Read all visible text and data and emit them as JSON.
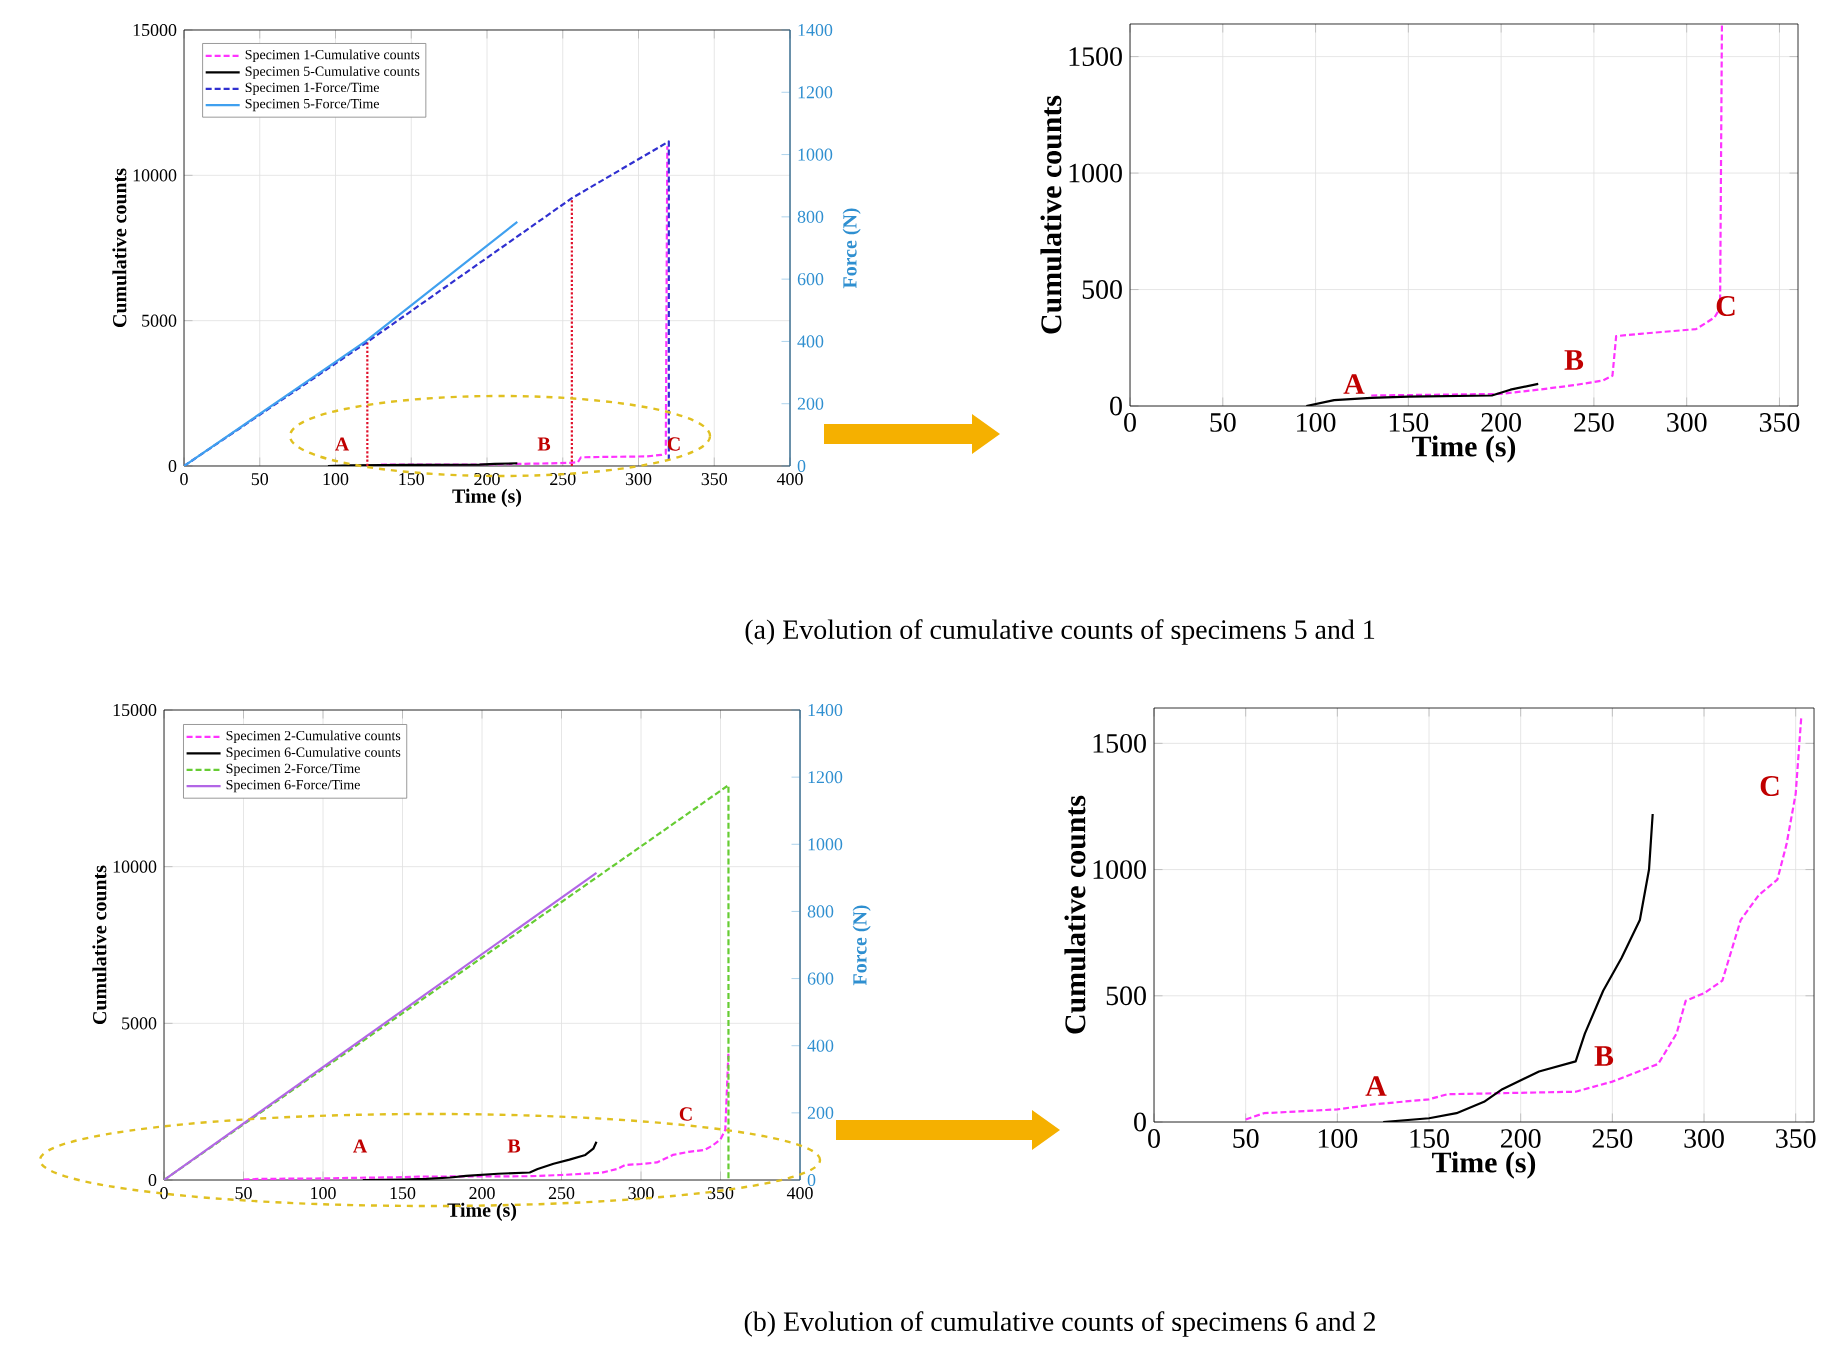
{
  "chart_data": [
    {
      "type": "line",
      "xlabel": "Time (s)",
      "ylabel": "Cumulative counts",
      "y2label": "Force (N)",
      "xlim": [
        0,
        400
      ],
      "ylim": [
        0,
        15000
      ],
      "y2lim": [
        0,
        1400
      ],
      "xticks": [
        0,
        50,
        100,
        150,
        200,
        250,
        300,
        350,
        400
      ],
      "yticks": [
        0,
        5000,
        10000,
        15000
      ],
      "y2ticks": [
        0,
        200,
        400,
        600,
        800,
        1000,
        1200,
        1400
      ],
      "grid": true,
      "legend": "top left",
      "series": [
        {
          "name": "Specimen 1-Cumulative counts",
          "color": "#ff33ff",
          "line_style": "dashed",
          "x": [
            130,
            160,
            200,
            220,
            240,
            255,
            260,
            262,
            275,
            305,
            315,
            318,
            319
          ],
          "values": [
            45,
            48,
            52,
            70,
            90,
            110,
            130,
            300,
            310,
            330,
            380,
            420,
            11000
          ]
        },
        {
          "name": "Specimen 5-Cumulative counts",
          "color": "#000000",
          "line_style": "solid",
          "x": [
            95,
            110,
            130,
            150,
            195,
            205,
            220
          ],
          "values": [
            0,
            25,
            35,
            40,
            45,
            70,
            95
          ]
        },
        {
          "name": "Specimen 1-Force/Time",
          "color": "#3030d0",
          "line_style": "dashed",
          "axis": "y2",
          "x": [
            0,
            120,
            256,
            320,
            320
          ],
          "values": [
            0,
            395,
            860,
            1042,
            20
          ]
        },
        {
          "name": "Specimen 5-Force/Time",
          "color": "#3fa0ef",
          "line_style": "solid",
          "axis": "y2",
          "x": [
            0,
            120,
            220
          ],
          "values": [
            0,
            401,
            784
          ]
        },
        {
          "color": "#e0102a",
          "line_style": "dotted",
          "x": [
            121,
            121
          ],
          "values": [
            0,
            4300
          ]
        },
        {
          "color": "#e0102a",
          "line_style": "dotted",
          "x": [
            256,
            256
          ],
          "values": [
            0,
            9200
          ]
        }
      ],
      "annotations": [
        "A",
        "B",
        "C",
        "(a) Evolution of cumulative counts of specimens 5 and 1"
      ]
    },
    {
      "type": "line",
      "xlabel": "Time (s)",
      "ylabel": "Cumulative counts",
      "xlim": [
        0,
        360
      ],
      "ylim": [
        0,
        1640
      ],
      "xticks": [
        0,
        50,
        100,
        150,
        200,
        250,
        300,
        350
      ],
      "yticks": [
        0,
        500,
        1000,
        1500
      ],
      "grid": true,
      "series": [
        {
          "color": "#ff33ff",
          "line_style": "dashed",
          "x": [
            130,
            160,
            200,
            220,
            240,
            255,
            260,
            262,
            275,
            305,
            315,
            318,
            319
          ],
          "values": [
            45,
            48,
            52,
            70,
            90,
            110,
            130,
            300,
            310,
            330,
            380,
            420,
            1640
          ]
        },
        {
          "color": "#000000",
          "line_style": "solid",
          "x": [
            95,
            110,
            130,
            150,
            195,
            205,
            220
          ],
          "values": [
            0,
            25,
            35,
            40,
            45,
            70,
            95
          ]
        }
      ],
      "annotations": [
        "A",
        "B",
        "C"
      ]
    },
    {
      "type": "line",
      "xlabel": "Time (s)",
      "ylabel": "Cumulative counts",
      "y2label": "Force (N)",
      "xlim": [
        0,
        400
      ],
      "ylim": [
        0,
        15000
      ],
      "y2lim": [
        0,
        1400
      ],
      "xticks": [
        0,
        50,
        100,
        150,
        200,
        250,
        300,
        350,
        400
      ],
      "yticks": [
        0,
        5000,
        10000,
        15000
      ],
      "y2ticks": [
        0,
        200,
        400,
        600,
        800,
        1000,
        1200,
        1400
      ],
      "grid": true,
      "legend": "top left",
      "series": [
        {
          "name": "Specimen 2-Cumulative counts",
          "color": "#ff33ff",
          "line_style": "dashed",
          "x": [
            50,
            60,
            100,
            120,
            150,
            160,
            230,
            250,
            275,
            285,
            290,
            300,
            310,
            320,
            330,
            340,
            345,
            350,
            353,
            355
          ],
          "values": [
            10,
            35,
            50,
            70,
            90,
            110,
            120,
            160,
            230,
            350,
            480,
            510,
            560,
            800,
            900,
            960,
            1100,
            1300,
            1600,
            4100
          ]
        },
        {
          "name": "Specimen 6-Cumulative counts",
          "color": "#000000",
          "line_style": "solid",
          "x": [
            125,
            150,
            165,
            180,
            190,
            210,
            230,
            235,
            245,
            255,
            265,
            270,
            272
          ],
          "values": [
            0,
            15,
            35,
            80,
            130,
            200,
            240,
            350,
            520,
            650,
            800,
            1000,
            1220
          ]
        },
        {
          "name": "Specimen 2-Force/Time",
          "color": "#66cc33",
          "line_style": "dashed",
          "axis": "y2",
          "x": [
            0,
            355,
            355
          ],
          "values": [
            0,
            1176,
            0
          ]
        },
        {
          "name": "Specimen 6-Force/Time",
          "color": "#b266e6",
          "line_style": "solid",
          "axis": "y2",
          "x": [
            0,
            272
          ],
          "values": [
            0,
            915
          ]
        }
      ],
      "annotations": [
        "A",
        "B",
        "C",
        "(b) Evolution of cumulative counts of specimens 6 and 2"
      ]
    },
    {
      "type": "line",
      "xlabel": "Time (s)",
      "ylabel": "Cumulative counts",
      "xlim": [
        0,
        360
      ],
      "ylim": [
        0,
        1640
      ],
      "xticks": [
        0,
        50,
        100,
        150,
        200,
        250,
        300,
        350
      ],
      "yticks": [
        0,
        500,
        1000,
        1500
      ],
      "grid": true,
      "series": [
        {
          "color": "#ff33ff",
          "line_style": "dashed",
          "x": [
            50,
            60,
            100,
            120,
            150,
            160,
            230,
            250,
            275,
            285,
            290,
            300,
            310,
            320,
            330,
            340,
            345,
            350,
            353
          ],
          "values": [
            10,
            35,
            50,
            70,
            90,
            110,
            120,
            160,
            230,
            350,
            480,
            510,
            560,
            800,
            900,
            960,
            1100,
            1300,
            1600
          ]
        },
        {
          "color": "#000000",
          "line_style": "solid",
          "x": [
            125,
            150,
            165,
            180,
            190,
            210,
            230,
            235,
            245,
            255,
            265,
            270,
            272
          ],
          "values": [
            0,
            15,
            35,
            80,
            130,
            200,
            240,
            350,
            520,
            650,
            800,
            1000,
            1220
          ]
        }
      ],
      "annotations": [
        "A",
        "B",
        "C"
      ]
    }
  ]
}
